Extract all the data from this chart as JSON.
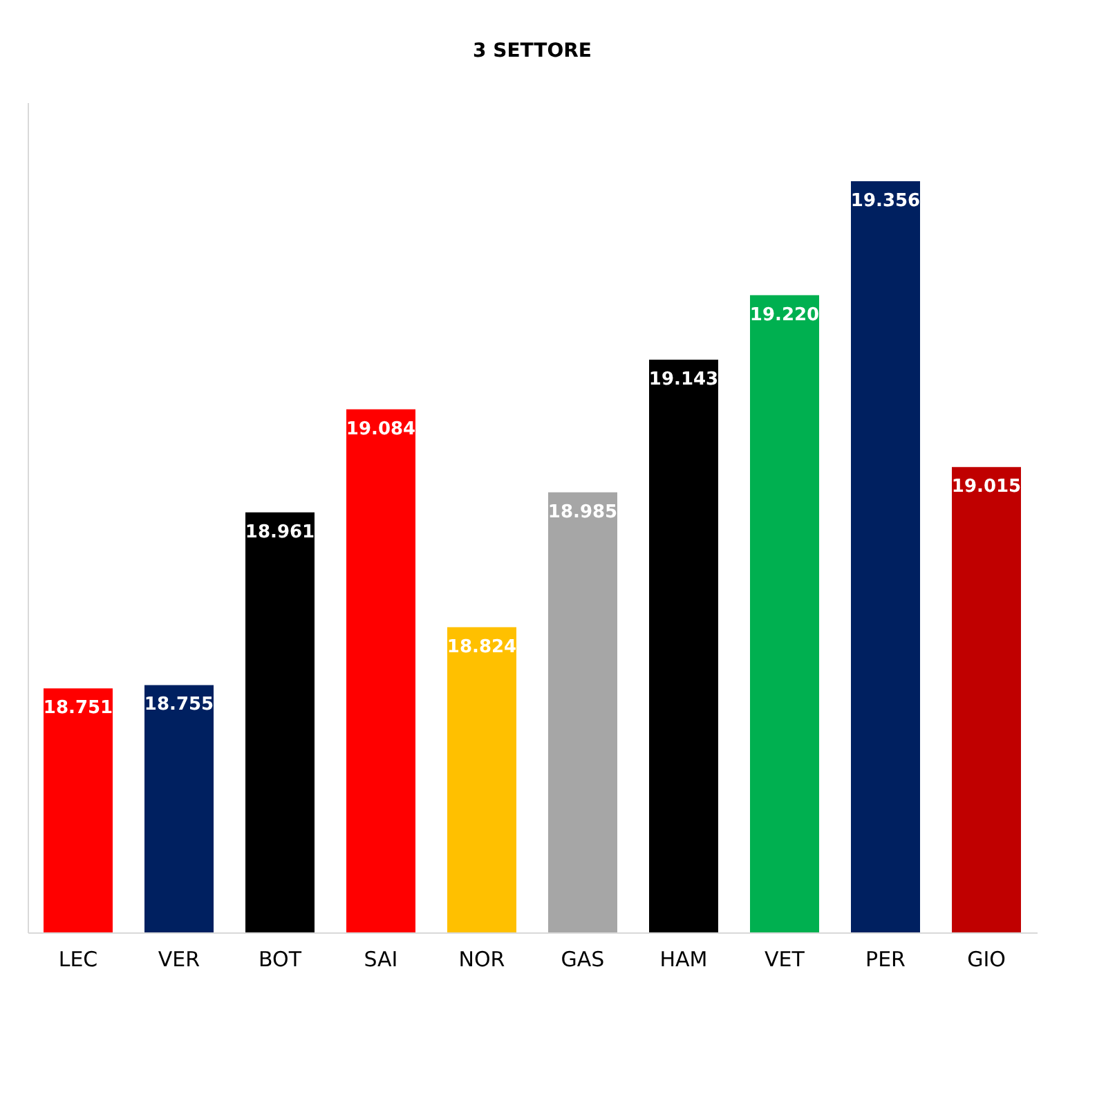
{
  "chart_data": {
    "type": "bar",
    "title": "3 SETTORE",
    "categories": [
      "LEC",
      "VER",
      "BOT",
      "SAI",
      "NOR",
      "GAS",
      "HAM",
      "VET",
      "PER",
      "GIO"
    ],
    "values": [
      18.751,
      18.755,
      18.961,
      19.084,
      18.824,
      18.985,
      19.143,
      19.22,
      19.356,
      19.015
    ],
    "value_labels": [
      "18.751",
      "18.755",
      "18.961",
      "19.084",
      "18.824",
      "18.985",
      "19.143",
      "19.220",
      "19.356",
      "19.015"
    ],
    "colors": [
      "#ff0000",
      "#002060",
      "#000000",
      "#ff0000",
      "#ffc000",
      "#a6a6a6",
      "#000000",
      "#00b050",
      "#002060",
      "#c00000"
    ],
    "ylim": [
      18.46,
      19.45
    ],
    "grid": false,
    "tick_labels": "x"
  }
}
